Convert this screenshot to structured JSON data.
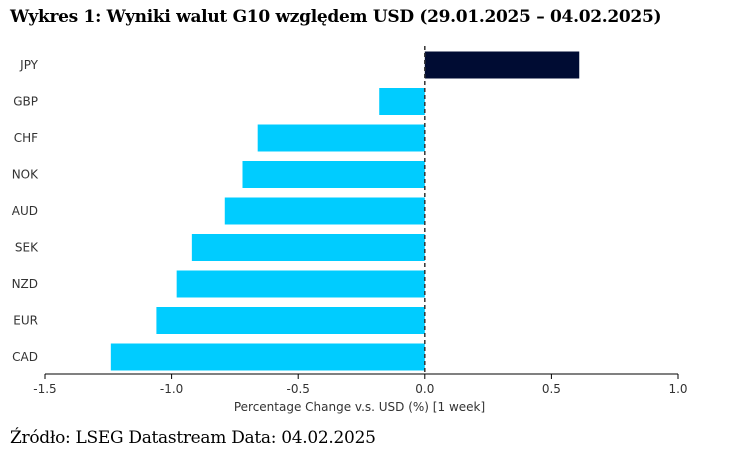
{
  "title": "Wykres 1: Wyniki walut G10 względem USD (29.01.2025 – 04.02.2025)",
  "source": "Źródło: LSEG Datastream Data: 04.02.2025",
  "chart_data": {
    "type": "bar",
    "orientation": "horizontal",
    "categories": [
      "JPY",
      "GBP",
      "CHF",
      "NOK",
      "AUD",
      "SEK",
      "NZD",
      "EUR",
      "CAD"
    ],
    "values": [
      0.61,
      -0.18,
      -0.66,
      -0.72,
      -0.79,
      -0.92,
      -0.98,
      -1.06,
      -1.24
    ],
    "xlabel": "Percentage Change v.s. USD (%) [1 week]",
    "xlim": [
      -1.5,
      1.0
    ],
    "xticks": [
      -1.5,
      -1.0,
      -0.5,
      0.0,
      0.5,
      1.0
    ],
    "xtick_labels": [
      "-1.5",
      "-1.0",
      "-0.5",
      "0.0",
      "0.5",
      "1.0"
    ],
    "grid": false,
    "colors": {
      "positive": "#000c33",
      "negative": "#00ccff",
      "axis": "#000000",
      "zero_line": "#333333"
    }
  }
}
